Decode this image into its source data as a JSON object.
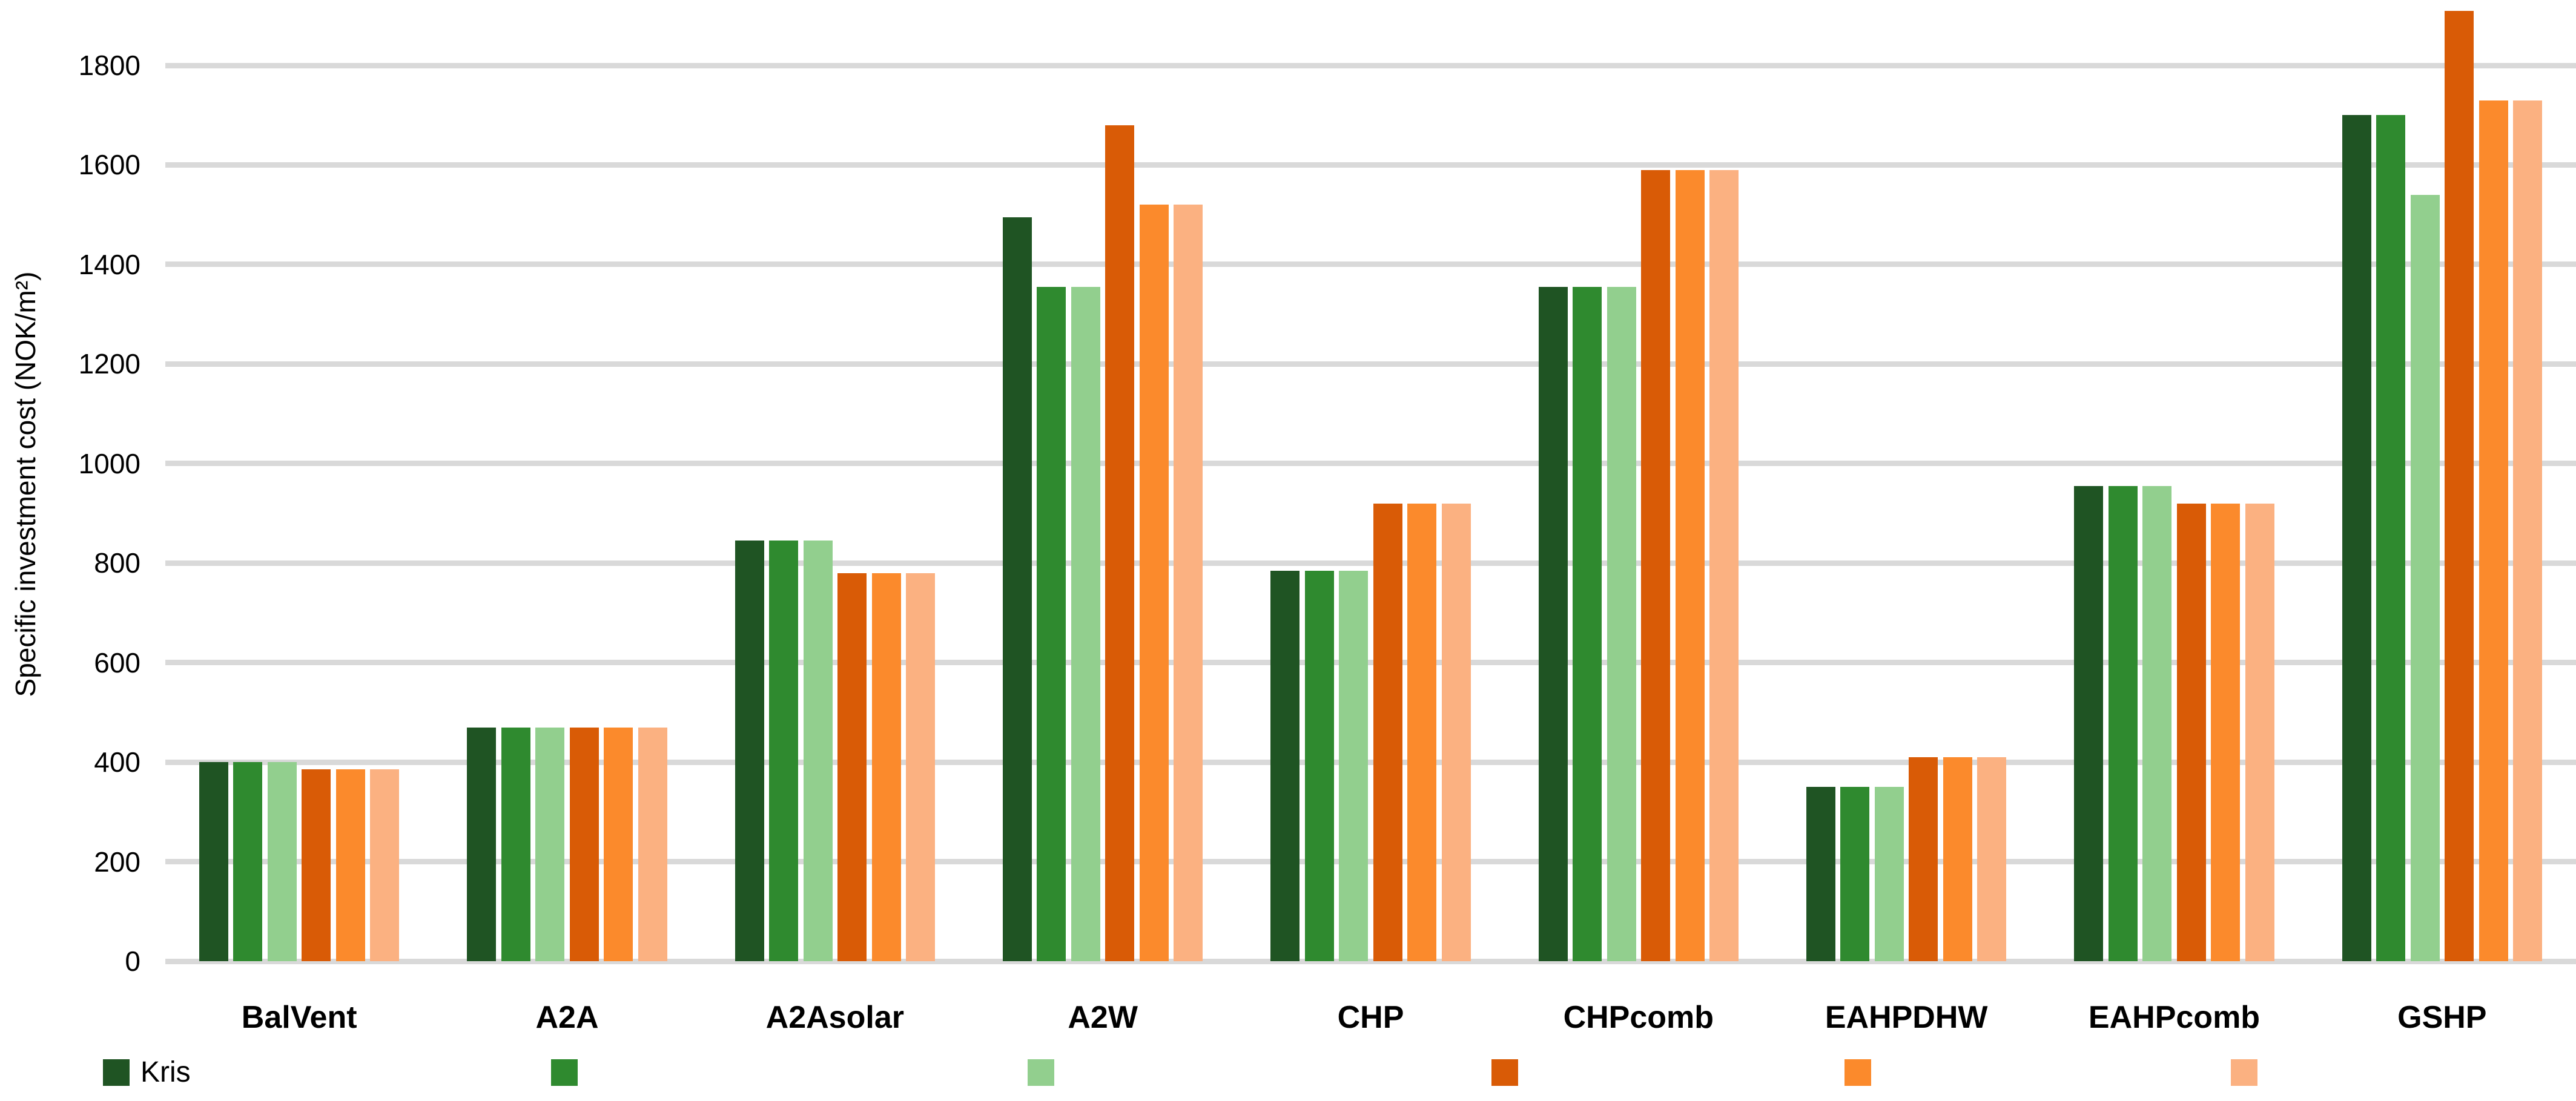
{
  "figure": {
    "background": "#ffffff",
    "text_color": "#000000",
    "gridline_color": "#d9d9d9"
  },
  "chart_data": {
    "type": "bar",
    "title": "",
    "xlabel": "",
    "ylabel": "Specific investment cost (NOK/m²)",
    "ylim": [
      0,
      1930
    ],
    "yticks": [
      0,
      200,
      400,
      600,
      800,
      1000,
      1200,
      1400,
      1600,
      1800
    ],
    "grid": true,
    "legend_position": "bottom",
    "categories": [
      "BalVent",
      "A2A",
      "A2Asolar",
      "A2W",
      "CHP",
      "CHPcomb",
      "EAHPDHW",
      "EAHPcomb",
      "GSHP"
    ],
    "series": [
      {
        "name": "Kris",
        "color": "#1f5423",
        "values": [
          400,
          470,
          845,
          1495,
          785,
          1355,
          350,
          955,
          1700
        ]
      },
      {
        "name": "",
        "color": "#2f8a2f",
        "values": [
          400,
          470,
          845,
          1355,
          785,
          1355,
          350,
          955,
          1700
        ]
      },
      {
        "name": "",
        "color": "#92cf8e",
        "values": [
          400,
          470,
          845,
          1355,
          785,
          1355,
          350,
          955,
          1540
        ]
      },
      {
        "name": "",
        "color": "#d95b06",
        "values": [
          385,
          470,
          780,
          1680,
          920,
          1590,
          410,
          920,
          1910
        ]
      },
      {
        "name": "",
        "color": "#fb8a2c",
        "values": [
          385,
          470,
          780,
          1520,
          920,
          1590,
          410,
          920,
          1730
        ]
      },
      {
        "name": "",
        "color": "#fbb181",
        "values": [
          385,
          470,
          780,
          1520,
          920,
          1590,
          410,
          920,
          1730
        ]
      }
    ]
  }
}
